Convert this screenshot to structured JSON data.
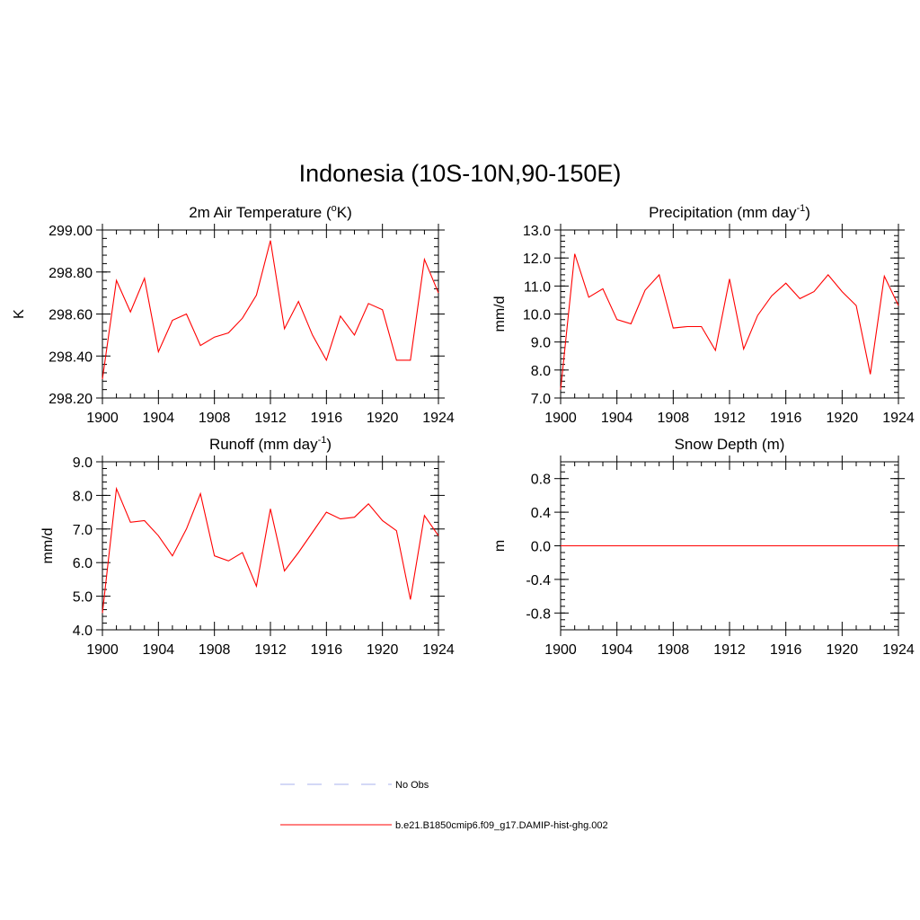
{
  "figure_title": "Indonesia (10S-10N,90-150E)",
  "colors": {
    "model_line": "#ff0000",
    "obs_line": "#aab0ee",
    "frame": "#000000"
  },
  "legend": [
    {
      "label": "No Obs",
      "style": "dashed",
      "color": "#aab0ee"
    },
    {
      "label": "b.e21.B1850cmip6.f09_g17.DAMIP-hist-ghg.002",
      "style": "solid",
      "color": "#ff0000"
    }
  ],
  "chart_data": [
    {
      "type": "line",
      "title": "2m Air Temperature (",
      "title_sup": "o",
      "title_tail": "K)",
      "ylabel": "K",
      "xlim": [
        1900,
        1924
      ],
      "ylim": [
        298.2,
        299.0
      ],
      "xticks": [
        1900,
        1904,
        1908,
        1912,
        1916,
        1920,
        1924
      ],
      "yticks": [
        298.2,
        298.4,
        298.6,
        298.8,
        299.0
      ],
      "ytick_labels": [
        "298.20",
        "298.40",
        "298.60",
        "298.80",
        "299.00"
      ],
      "x": [
        1900,
        1901,
        1902,
        1903,
        1904,
        1905,
        1906,
        1907,
        1908,
        1909,
        1910,
        1911,
        1912,
        1913,
        1914,
        1915,
        1916,
        1917,
        1918,
        1919,
        1920,
        1921,
        1922,
        1923,
        1924
      ],
      "series": [
        {
          "values": [
            298.29,
            298.76,
            298.61,
            298.77,
            298.42,
            298.57,
            298.6,
            298.45,
            298.49,
            298.51,
            298.58,
            298.69,
            298.95,
            298.53,
            298.66,
            298.5,
            298.38,
            298.59,
            298.5,
            298.65,
            298.62,
            298.38,
            298.38,
            298.86,
            298.7
          ]
        }
      ]
    },
    {
      "type": "line",
      "title": "Precipitation (mm day",
      "title_sup": "-1",
      "title_tail": ")",
      "ylabel": "mm/d",
      "xlim": [
        1900,
        1924
      ],
      "ylim": [
        7.0,
        13.0
      ],
      "xticks": [
        1900,
        1904,
        1908,
        1912,
        1916,
        1920,
        1924
      ],
      "yticks": [
        7.0,
        8.0,
        9.0,
        10.0,
        11.0,
        12.0,
        13.0
      ],
      "ytick_labels": [
        "7.0",
        "8.0",
        "9.0",
        "10.0",
        "11.0",
        "12.0",
        "13.0"
      ],
      "x": [
        1900,
        1901,
        1902,
        1903,
        1904,
        1905,
        1906,
        1907,
        1908,
        1909,
        1910,
        1911,
        1912,
        1913,
        1914,
        1915,
        1916,
        1917,
        1918,
        1919,
        1920,
        1921,
        1922,
        1923,
        1924
      ],
      "series": [
        {
          "values": [
            7.3,
            12.15,
            10.6,
            10.9,
            9.8,
            9.65,
            10.85,
            11.4,
            9.5,
            9.55,
            9.55,
            8.7,
            11.25,
            8.75,
            9.95,
            10.65,
            11.1,
            10.55,
            10.8,
            11.4,
            10.8,
            10.3,
            7.85,
            11.35,
            10.3
          ]
        }
      ]
    },
    {
      "type": "line",
      "title": "Runoff (mm day",
      "title_sup": "-1",
      "title_tail": ")",
      "ylabel": "mm/d",
      "xlim": [
        1900,
        1924
      ],
      "ylim": [
        4.0,
        9.0
      ],
      "xticks": [
        1900,
        1904,
        1908,
        1912,
        1916,
        1920,
        1924
      ],
      "yticks": [
        4.0,
        5.0,
        6.0,
        7.0,
        8.0,
        9.0
      ],
      "ytick_labels": [
        "4.0",
        "5.0",
        "6.0",
        "7.0",
        "8.0",
        "9.0"
      ],
      "x": [
        1900,
        1901,
        1902,
        1903,
        1904,
        1905,
        1906,
        1907,
        1908,
        1909,
        1910,
        1911,
        1912,
        1913,
        1914,
        1915,
        1916,
        1917,
        1918,
        1919,
        1920,
        1921,
        1922,
        1923,
        1924
      ],
      "series": [
        {
          "values": [
            4.5,
            8.2,
            7.2,
            7.25,
            6.8,
            6.2,
            7.0,
            8.05,
            6.2,
            6.05,
            6.3,
            5.3,
            7.6,
            5.75,
            6.3,
            6.9,
            7.5,
            7.3,
            7.35,
            7.75,
            7.25,
            6.95,
            4.9,
            7.4,
            6.8
          ]
        }
      ]
    },
    {
      "type": "line",
      "title": "Snow Depth (m)",
      "title_sup": "",
      "title_tail": "",
      "ylabel": "m",
      "xlim": [
        1900,
        1924
      ],
      "ylim": [
        -1.0,
        1.0
      ],
      "xticks": [
        1900,
        1904,
        1908,
        1912,
        1916,
        1920,
        1924
      ],
      "yticks": [
        -0.8,
        -0.4,
        0.0,
        0.4,
        0.8
      ],
      "ytick_labels": [
        "-0.8",
        "-0.4",
        "0.0",
        "0.4",
        "0.8"
      ],
      "x": [
        1900,
        1901,
        1902,
        1903,
        1904,
        1905,
        1906,
        1907,
        1908,
        1909,
        1910,
        1911,
        1912,
        1913,
        1914,
        1915,
        1916,
        1917,
        1918,
        1919,
        1920,
        1921,
        1922,
        1923,
        1924
      ],
      "series": [
        {
          "values": [
            0,
            0,
            0,
            0,
            0,
            0,
            0,
            0,
            0,
            0,
            0,
            0,
            0,
            0,
            0,
            0,
            0,
            0,
            0,
            0,
            0,
            0,
            0,
            0,
            0
          ]
        }
      ]
    }
  ]
}
